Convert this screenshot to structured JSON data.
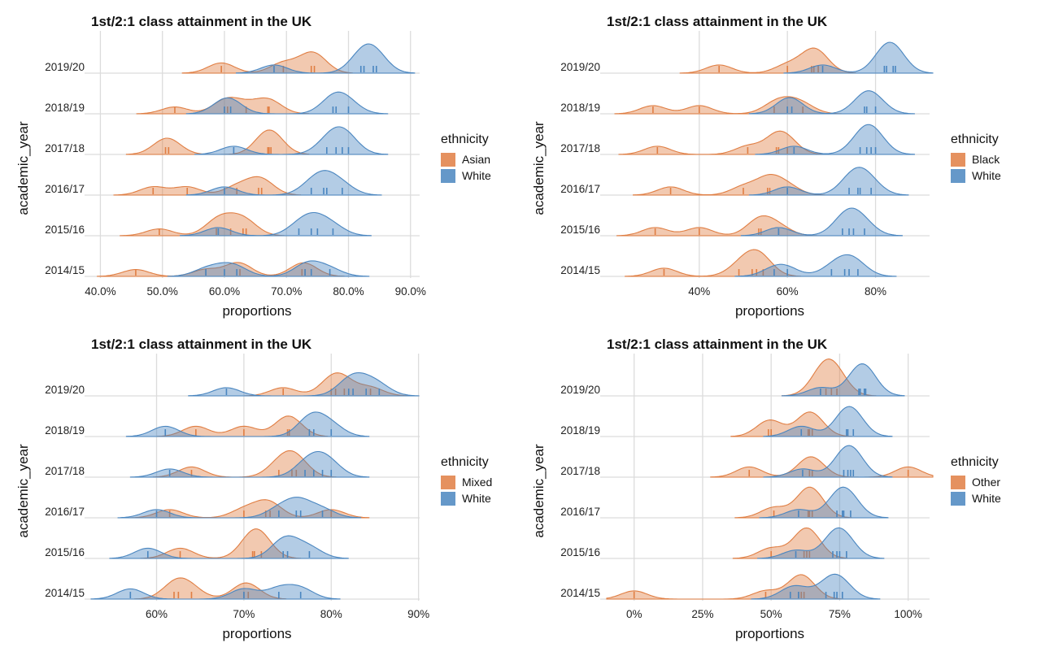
{
  "colors": {
    "primary": "#E07E43",
    "white_group": "#4A86C0",
    "grid": "#dcdcdc"
  },
  "chart_data": [
    {
      "type": "ridgeline-density",
      "title": "1st/2:1 class attainment in the UK",
      "xlabel": "proportions",
      "ylabel": "academic_year",
      "legend_title": "ethnicity",
      "legend_position": "right",
      "categories": [
        "2014/15",
        "2015/16",
        "2016/17",
        "2017/18",
        "2018/19",
        "2019/20"
      ],
      "xlim": [
        0.385,
        0.92
      ],
      "xticks": [
        0.4,
        0.5,
        0.6,
        0.7,
        0.8,
        0.9
      ],
      "xtick_labels": [
        "40.0%",
        "50.0%",
        "60.0%",
        "70.0%",
        "80.0%",
        "90.0%"
      ],
      "grid": true,
      "series": [
        {
          "name": "Asian",
          "color": "#E07E43",
          "values": [
            [
              0.457,
              0.57,
              0.62,
              0.625,
              0.725,
              0.73
            ],
            [
              0.495,
              0.587,
              0.59,
              0.61,
              0.63,
              0.635
            ],
            [
              0.485,
              0.54,
              0.62,
              0.655,
              0.66
            ],
            [
              0.505,
              0.51,
              0.67,
              0.672,
              0.675
            ],
            [
              0.52,
              0.6,
              0.605,
              0.635,
              0.67,
              0.672
            ],
            [
              0.595,
              0.695,
              0.74,
              0.745
            ]
          ]
        },
        {
          "name": "White",
          "color": "#4A86C0",
          "values": [
            [
              0.57,
              0.6,
              0.62,
              0.73,
              0.74,
              0.77
            ],
            [
              0.59,
              0.72,
              0.74,
              0.75,
              0.775
            ],
            [
              0.6,
              0.74,
              0.76,
              0.765,
              0.79
            ],
            [
              0.615,
              0.765,
              0.78,
              0.79,
              0.8
            ],
            [
              0.6,
              0.61,
              0.775,
              0.78,
              0.8
            ],
            [
              0.68,
              0.82,
              0.825,
              0.84,
              0.845
            ]
          ]
        }
      ]
    },
    {
      "type": "ridgeline-density",
      "title": "1st/2:1 class attainment in the UK",
      "xlabel": "proportions",
      "ylabel": "academic_year",
      "legend_title": "ethnicity",
      "legend_position": "right",
      "categories": [
        "2014/15",
        "2015/16",
        "2016/17",
        "2017/18",
        "2018/19",
        "2019/20"
      ],
      "xlim": [
        0.19,
        0.93
      ],
      "xticks": [
        0.4,
        0.6,
        0.8
      ],
      "xtick_labels": [
        "40%",
        "60%",
        "80%"
      ],
      "grid": true,
      "series": [
        {
          "name": "Black",
          "color": "#E07E43",
          "values": [
            [
              0.32,
              0.49,
              0.52,
              0.53,
              0.545
            ],
            [
              0.3,
              0.4,
              0.535,
              0.54,
              0.58
            ],
            [
              0.335,
              0.5,
              0.555,
              0.56,
              0.6
            ],
            [
              0.305,
              0.51,
              0.575,
              0.58,
              0.6
            ],
            [
              0.295,
              0.4,
              0.57,
              0.6,
              0.635
            ],
            [
              0.445,
              0.6,
              0.655,
              0.66,
              0.67
            ]
          ]
        },
        {
          "name": "White",
          "color": "#4A86C0",
          "values": [
            [
              0.57,
              0.6,
              0.7,
              0.73,
              0.74,
              0.76
            ],
            [
              0.58,
              0.725,
              0.74,
              0.75,
              0.775
            ],
            [
              0.6,
              0.74,
              0.76,
              0.765,
              0.79
            ],
            [
              0.615,
              0.765,
              0.78,
              0.79,
              0.8
            ],
            [
              0.6,
              0.61,
              0.775,
              0.78,
              0.8
            ],
            [
              0.68,
              0.82,
              0.825,
              0.84,
              0.845
            ]
          ]
        }
      ]
    },
    {
      "type": "ridgeline-density",
      "title": "1st/2:1 class attainment in the UK",
      "xlabel": "proportions",
      "ylabel": "academic_year",
      "legend_title": "ethnicity",
      "legend_position": "right",
      "categories": [
        "2014/15",
        "2015/16",
        "2016/17",
        "2017/18",
        "2018/19",
        "2019/20"
      ],
      "xlim": [
        0.525,
        0.905
      ],
      "xticks": [
        0.6,
        0.7,
        0.8,
        0.9
      ],
      "xtick_labels": [
        "60%",
        "70%",
        "80%",
        "90%"
      ],
      "grid": true,
      "series": [
        {
          "name": "Mixed",
          "color": "#E07E43",
          "values": [
            [
              0.62,
              0.625,
              0.64,
              0.7,
              0.705
            ],
            [
              0.627,
              0.71,
              0.712,
              0.72
            ],
            [
              0.615,
              0.7,
              0.725,
              0.73,
              0.8
            ],
            [
              0.64,
              0.74,
              0.755,
              0.76
            ],
            [
              0.645,
              0.7,
              0.75,
              0.752
            ],
            [
              0.745,
              0.8,
              0.805,
              0.815,
              0.845
            ]
          ]
        },
        {
          "name": "White",
          "color": "#4A86C0",
          "values": [
            [
              0.57,
              0.7,
              0.74,
              0.765
            ],
            [
              0.59,
              0.745,
              0.75,
              0.775
            ],
            [
              0.6,
              0.74,
              0.76,
              0.765,
              0.79
            ],
            [
              0.615,
              0.77,
              0.78,
              0.79,
              0.8
            ],
            [
              0.61,
              0.775,
              0.78,
              0.8
            ],
            [
              0.68,
              0.82,
              0.825,
              0.84,
              0.855
            ]
          ]
        }
      ]
    },
    {
      "type": "ridgeline-density",
      "title": "1st/2:1 class attainment in the UK",
      "xlabel": "proportions",
      "ylabel": "academic_year",
      "legend_title": "ethnicity",
      "legend_position": "right",
      "categories": [
        "2014/15",
        "2015/16",
        "2016/17",
        "2017/18",
        "2018/19",
        "2019/20"
      ],
      "xlim": [
        -0.1,
        1.09
      ],
      "xticks": [
        0.0,
        0.25,
        0.5,
        0.75,
        1.0
      ],
      "xtick_labels": [
        "0%",
        "25%",
        "50%",
        "75%",
        "100%"
      ],
      "grid": true,
      "series": [
        {
          "name": "Other",
          "color": "#E07E43",
          "values": [
            [
              0.0,
              0.48,
              0.6,
              0.61,
              0.62
            ],
            [
              0.5,
              0.62,
              0.63,
              0.64
            ],
            [
              0.51,
              0.635,
              0.64,
              0.65
            ],
            [
              0.42,
              0.64,
              0.65,
              1.0
            ],
            [
              0.49,
              0.5,
              0.635,
              0.64,
              0.65
            ],
            [
              0.68,
              0.7,
              0.72,
              0.74
            ]
          ]
        },
        {
          "name": "White",
          "color": "#4A86C0",
          "values": [
            [
              0.57,
              0.6,
              0.7,
              0.73,
              0.74,
              0.76
            ],
            [
              0.59,
              0.725,
              0.74,
              0.75,
              0.775
            ],
            [
              0.6,
              0.74,
              0.76,
              0.765,
              0.79
            ],
            [
              0.615,
              0.765,
              0.78,
              0.79,
              0.8
            ],
            [
              0.61,
              0.775,
              0.78,
              0.8
            ],
            [
              0.68,
              0.82,
              0.825,
              0.84,
              0.845
            ]
          ]
        }
      ]
    }
  ]
}
